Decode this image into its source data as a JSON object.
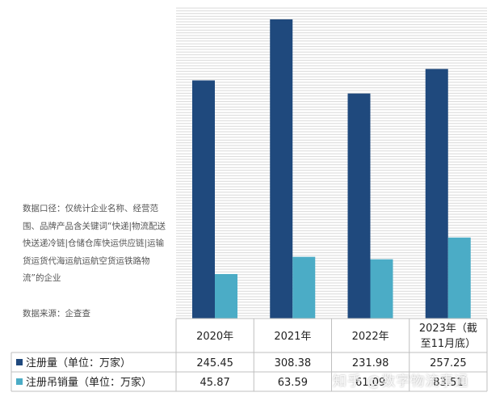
{
  "note": "数据口径：仅统计企业名称、经营范围、品牌产品含关键词“快递|物流配送快送递冷链|仓储仓库快运供应链|运输货运货代海运航运航空货运铁路物流”的企业",
  "source": "数据来源：企查查",
  "watermark": "知乎 @数字物流事通",
  "colors": {
    "registered": "#1f497d",
    "cancelled": "#4bacc6",
    "grid": "#d9d9d9",
    "border": "#bfbfbf"
  },
  "chart_data": {
    "type": "bar",
    "categories": [
      "2020年",
      "2021年",
      "2022年",
      "2023年（截至11月底）"
    ],
    "series": [
      {
        "name": "注册量（单位：万家）",
        "values": [
          245.45,
          308.38,
          231.98,
          257.25
        ]
      },
      {
        "name": "注册吊销量（单位：万家）",
        "values": [
          45.87,
          63.59,
          61.09,
          83.51
        ]
      }
    ],
    "value_labels": [
      [
        "245.45",
        "308.38",
        "231.98",
        "257.25"
      ],
      [
        "45.87",
        "63.59",
        "61.09",
        "83.51"
      ]
    ],
    "ylim": [
      0,
      320
    ],
    "grid": true,
    "legend": "table"
  }
}
